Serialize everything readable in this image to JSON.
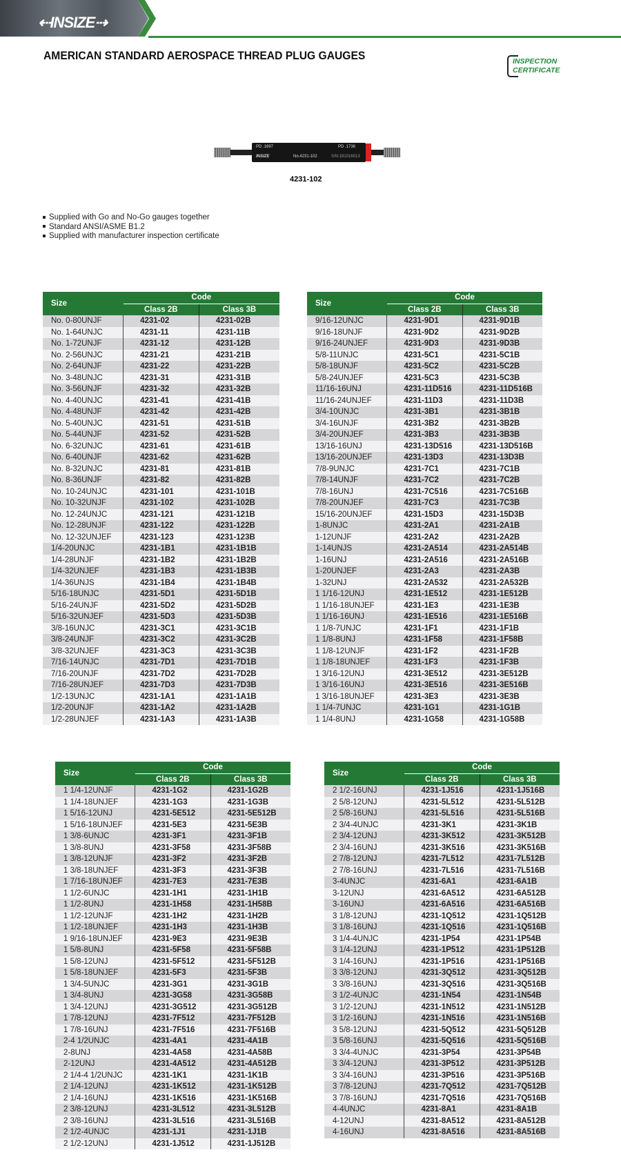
{
  "header": {
    "brand": "INSIZE",
    "title": "AMERICAN STANDARD AEROSPACE THREAD PLUG GAUGES",
    "cert_line1": "INSPECTION",
    "cert_line2": "CERTIFICATE",
    "accent": "#247a35"
  },
  "product": {
    "pd_go": "PD .1697",
    "pd_nogo": "PD .1736",
    "engraved_no": "No.4231-102",
    "serial": "S/N:181016013",
    "model": "4231-102"
  },
  "features": [
    "Supplied with Go and No-Go gauges together",
    "Standard ANSI/ASME B1.2",
    "Supplied with manufacturer inspection certificate"
  ],
  "table_headers": {
    "size": "Size",
    "code": "Code",
    "class2b": "Class 2B",
    "class3b": "Class 3B"
  },
  "tables": [
    {
      "rows": [
        [
          "No. 0-80UNJF",
          "4231-02",
          "4231-02B"
        ],
        [
          "No. 1-64UNJC",
          "4231-11",
          "4231-11B"
        ],
        [
          "No. 1-72UNJF",
          "4231-12",
          "4231-12B"
        ],
        [
          "No. 2-56UNJC",
          "4231-21",
          "4231-21B"
        ],
        [
          "No. 2-64UNJF",
          "4231-22",
          "4231-22B"
        ],
        [
          "No. 3-48UNJC",
          "4231-31",
          "4231-31B"
        ],
        [
          "No. 3-56UNJF",
          "4231-32",
          "4231-32B"
        ],
        [
          "No. 4-40UNJC",
          "4231-41",
          "4231-41B"
        ],
        [
          "No. 4-48UNJF",
          "4231-42",
          "4231-42B"
        ],
        [
          "No. 5-40UNJC",
          "4231-51",
          "4231-51B"
        ],
        [
          "No. 5-44UNJF",
          "4231-52",
          "4231-52B"
        ],
        [
          "No. 6-32UNJC",
          "4231-61",
          "4231-61B"
        ],
        [
          "No. 6-40UNJF",
          "4231-62",
          "4231-62B"
        ],
        [
          "No. 8-32UNJC",
          "4231-81",
          "4231-81B"
        ],
        [
          "No. 8-36UNJF",
          "4231-82",
          "4231-82B"
        ],
        [
          "No. 10-24UNJC",
          "4231-101",
          "4231-101B"
        ],
        [
          "No. 10-32UNJF",
          "4231-102",
          "4231-102B"
        ],
        [
          "No. 12-24UNJC",
          "4231-121",
          "4231-121B"
        ],
        [
          "No. 12-28UNJF",
          "4231-122",
          "4231-122B"
        ],
        [
          "No. 12-32UNJEF",
          "4231-123",
          "4231-123B"
        ],
        [
          "1/4-20UNJC",
          "4231-1B1",
          "4231-1B1B"
        ],
        [
          "1/4-28UNJF",
          "4231-1B2",
          "4231-1B2B"
        ],
        [
          "1/4-32UNJEF",
          "4231-1B3",
          "4231-1B3B"
        ],
        [
          "1/4-36UNJS",
          "4231-1B4",
          "4231-1B4B"
        ],
        [
          "5/16-18UNJC",
          "4231-5D1",
          "4231-5D1B"
        ],
        [
          "5/16-24UNJF",
          "4231-5D2",
          "4231-5D2B"
        ],
        [
          "5/16-32UNJEF",
          "4231-5D3",
          "4231-5D3B"
        ],
        [
          "3/8-16UNJC",
          "4231-3C1",
          "4231-3C1B"
        ],
        [
          "3/8-24UNJF",
          "4231-3C2",
          "4231-3C2B"
        ],
        [
          "3/8-32UNJEF",
          "4231-3C3",
          "4231-3C3B"
        ],
        [
          "7/16-14UNJC",
          "4231-7D1",
          "4231-7D1B"
        ],
        [
          "7/16-20UNJF",
          "4231-7D2",
          "4231-7D2B"
        ],
        [
          "7/16-28UNJEF",
          "4231-7D3",
          "4231-7D3B"
        ],
        [
          "1/2-13UNJC",
          "4231-1A1",
          "4231-1A1B"
        ],
        [
          "1/2-20UNJF",
          "4231-1A2",
          "4231-1A2B"
        ],
        [
          "1/2-28UNJEF",
          "4231-1A3",
          "4231-1A3B"
        ]
      ]
    },
    {
      "rows": [
        [
          "9/16-12UNJC",
          "4231-9D1",
          "4231-9D1B"
        ],
        [
          "9/16-18UNJF",
          "4231-9D2",
          "4231-9D2B"
        ],
        [
          "9/16-24UNJEF",
          "4231-9D3",
          "4231-9D3B"
        ],
        [
          "5/8-11UNJC",
          "4231-5C1",
          "4231-5C1B"
        ],
        [
          "5/8-18UNJF",
          "4231-5C2",
          "4231-5C2B"
        ],
        [
          "5/8-24UNJEF",
          "4231-5C3",
          "4231-5C3B"
        ],
        [
          "11/16-16UNJ",
          "4231-11D516",
          "4231-11D516B"
        ],
        [
          "11/16-24UNJEF",
          "4231-11D3",
          "4231-11D3B"
        ],
        [
          "3/4-10UNJC",
          "4231-3B1",
          "4231-3B1B"
        ],
        [
          "3/4-16UNJF",
          "4231-3B2",
          "4231-3B2B"
        ],
        [
          "3/4-20UNJEF",
          "4231-3B3",
          "4231-3B3B"
        ],
        [
          "13/16-16UNJ",
          "4231-13D516",
          "4231-13D516B"
        ],
        [
          "13/16-20UNJEF",
          "4231-13D3",
          "4231-13D3B"
        ],
        [
          "7/8-9UNJC",
          "4231-7C1",
          "4231-7C1B"
        ],
        [
          "7/8-14UNJF",
          "4231-7C2",
          "4231-7C2B"
        ],
        [
          "7/8-16UNJ",
          "4231-7C516",
          "4231-7C516B"
        ],
        [
          "7/8-20UNJEF",
          "4231-7C3",
          "4231-7C3B"
        ],
        [
          "15/16-20UNJEF",
          "4231-15D3",
          "4231-15D3B"
        ],
        [
          "1-8UNJC",
          "4231-2A1",
          "4231-2A1B"
        ],
        [
          "1-12UNJF",
          "4231-2A2",
          "4231-2A2B"
        ],
        [
          "1-14UNJS",
          "4231-2A514",
          "4231-2A514B"
        ],
        [
          "1-16UNJ",
          "4231-2A516",
          "4231-2A516B"
        ],
        [
          "1-20UNJEF",
          "4231-2A3",
          "4231-2A3B"
        ],
        [
          "1-32UNJ",
          "4231-2A532",
          "4231-2A532B"
        ],
        [
          "1 1/16-12UNJ",
          "4231-1E512",
          "4231-1E512B"
        ],
        [
          "1 1/16-18UNJEF",
          "4231-1E3",
          "4231-1E3B"
        ],
        [
          "1 1/16-16UNJ",
          "4231-1E516",
          "4231-1E516B"
        ],
        [
          "1 1/8-7UNJC",
          "4231-1F1",
          "4231-1F1B"
        ],
        [
          "1 1/8-8UNJ",
          "4231-1F58",
          "4231-1F58B"
        ],
        [
          "1 1/8-12UNJF",
          "4231-1F2",
          "4231-1F2B"
        ],
        [
          "1 1/8-18UNJEF",
          "4231-1F3",
          "4231-1F3B"
        ],
        [
          "1 3/16-12UNJ",
          "4231-3E512",
          "4231-3E512B"
        ],
        [
          "1 3/16-16UNJ",
          "4231-3E516",
          "4231-3E516B"
        ],
        [
          "1 3/16-18UNJEF",
          "4231-3E3",
          "4231-3E3B"
        ],
        [
          "1 1/4-7UNJC",
          "4231-1G1",
          "4231-1G1B"
        ],
        [
          "1 1/4-8UNJ",
          "4231-1G58",
          "4231-1G58B"
        ]
      ]
    },
    {
      "rows": [
        [
          "1 1/4-12UNJF",
          "4231-1G2",
          "4231-1G2B"
        ],
        [
          "1 1/4-18UNJEF",
          "4231-1G3",
          "4231-1G3B"
        ],
        [
          "1 5/16-12UNJ",
          "4231-5E512",
          "4231-5E512B"
        ],
        [
          "1 5/16-18UNJEF",
          "4231-5E3",
          "4231-5E3B"
        ],
        [
          "1 3/8-6UNJC",
          "4231-3F1",
          "4231-3F1B"
        ],
        [
          "1 3/8-8UNJ",
          "4231-3F58",
          "4231-3F58B"
        ],
        [
          "1 3/8-12UNJF",
          "4231-3F2",
          "4231-3F2B"
        ],
        [
          "1 3/8-18UNJEF",
          "4231-3F3",
          "4231-3F3B"
        ],
        [
          "1 7/16-18UNJEF",
          "4231-7E3",
          "4231-7E3B"
        ],
        [
          "1 1/2-6UNJC",
          "4231-1H1",
          "4231-1H1B"
        ],
        [
          "1 1/2-8UNJ",
          "4231-1H58",
          "4231-1H58B"
        ],
        [
          "1 1/2-12UNJF",
          "4231-1H2",
          "4231-1H2B"
        ],
        [
          "1 1/2-18UNJEF",
          "4231-1H3",
          "4231-1H3B"
        ],
        [
          "1 9/16-18UNJEF",
          "4231-9E3",
          "4231-9E3B"
        ],
        [
          "1 5/8-8UNJ",
          "4231-5F58",
          "4231-5F58B"
        ],
        [
          "1 5/8-12UNJ",
          "4231-5F512",
          "4231-5F512B"
        ],
        [
          "1 5/8-18UNJEF",
          "4231-5F3",
          "4231-5F3B"
        ],
        [
          "1 3/4-5UNJC",
          "4231-3G1",
          "4231-3G1B"
        ],
        [
          "1 3/4-8UNJ",
          "4231-3G58",
          "4231-3G58B"
        ],
        [
          "1 3/4-12UNJ",
          "4231-3G512",
          "4231-3G512B"
        ],
        [
          "1 7/8-12UNJ",
          "4231-7F512",
          "4231-7F512B"
        ],
        [
          "1 7/8-16UNJ",
          "4231-7F516",
          "4231-7F516B"
        ],
        [
          "2-4 1/2UNJC",
          "4231-4A1",
          "4231-4A1B"
        ],
        [
          "2-8UNJ",
          "4231-4A58",
          "4231-4A58B"
        ],
        [
          "2-12UNJ",
          "4231-4A512",
          "4231-4A512B"
        ],
        [
          "2 1/4-4 1/2UNJC",
          "4231-1K1",
          "4231-1K1B"
        ],
        [
          "2 1/4-12UNJ",
          "4231-1K512",
          "4231-1K512B"
        ],
        [
          "2 1/4-16UNJ",
          "4231-1K516",
          "4231-1K516B"
        ],
        [
          "2 3/8-12UNJ",
          "4231-3L512",
          "4231-3L512B"
        ],
        [
          "2 3/8-16UNJ",
          "4231-3L516",
          "4231-3L516B"
        ],
        [
          "2 1/2-4UNJC",
          "4231-1J1",
          "4231-1J1B"
        ],
        [
          "2 1/2-12UNJ",
          "4231-1J512",
          "4231-1J512B"
        ]
      ]
    },
    {
      "rows": [
        [
          "2 1/2-16UNJ",
          "4231-1J516",
          "4231-1J516B"
        ],
        [
          "2 5/8-12UNJ",
          "4231-5L512",
          "4231-5L512B"
        ],
        [
          "2 5/8-16UNJ",
          "4231-5L516",
          "4231-5L516B"
        ],
        [
          "2 3/4-4UNJC",
          "4231-3K1",
          "4231-3K1B"
        ],
        [
          "2 3/4-12UNJ",
          "4231-3K512",
          "4231-3K512B"
        ],
        [
          "2 3/4-16UNJ",
          "4231-3K516",
          "4231-3K516B"
        ],
        [
          "2 7/8-12UNJ",
          "4231-7L512",
          "4231-7L512B"
        ],
        [
          "2 7/8-16UNJ",
          "4231-7L516",
          "4231-7L516B"
        ],
        [
          "3-4UNJC",
          "4231-6A1",
          "4231-6A1B"
        ],
        [
          "3-12UNJ",
          "4231-6A512",
          "4231-6A512B"
        ],
        [
          "3-16UNJ",
          "4231-6A516",
          "4231-6A516B"
        ],
        [
          "3 1/8-12UNJ",
          "4231-1Q512",
          "4231-1Q512B"
        ],
        [
          "3 1/8-16UNJ",
          "4231-1Q516",
          "4231-1Q516B"
        ],
        [
          "3 1/4-4UNJC",
          "4231-1P54",
          "4231-1P54B"
        ],
        [
          "3 1/4-12UNJ",
          "4231-1P512",
          "4231-1P512B"
        ],
        [
          "3 1/4-16UNJ",
          "4231-1P516",
          "4231-1P516B"
        ],
        [
          "3 3/8-12UNJ",
          "4231-3Q512",
          "4231-3Q512B"
        ],
        [
          "3 3/8-16UNJ",
          "4231-3Q516",
          "4231-3Q516B"
        ],
        [
          "3 1/2-4UNJC",
          "4231-1N54",
          "4231-1N54B"
        ],
        [
          "3 1/2-12UNJ",
          "4231-1N512",
          "4231-1N512B"
        ],
        [
          "3 1/2-16UNJ",
          "4231-1N516",
          "4231-1N516B"
        ],
        [
          "3 5/8-12UNJ",
          "4231-5Q512",
          "4231-5Q512B"
        ],
        [
          "3 5/8-16UNJ",
          "4231-5Q516",
          "4231-5Q516B"
        ],
        [
          "3 3/4-4UNJC",
          "4231-3P54",
          "4231-3P54B"
        ],
        [
          "3 3/4-12UNJ",
          "4231-3P512",
          "4231-3P512B"
        ],
        [
          "3 3/4-16UNJ",
          "4231-3P516",
          "4231-3P516B"
        ],
        [
          "3 7/8-12UNJ",
          "4231-7Q512",
          "4231-7Q512B"
        ],
        [
          "3 7/8-16UNJ",
          "4231-7Q516",
          "4231-7Q516B"
        ],
        [
          "4-4UNJC",
          "4231-8A1",
          "4231-8A1B"
        ],
        [
          "4-12UNJ",
          "4231-8A512",
          "4231-8A512B"
        ],
        [
          "4-16UNJ",
          "4231-8A516",
          "4231-8A516B"
        ]
      ]
    }
  ]
}
